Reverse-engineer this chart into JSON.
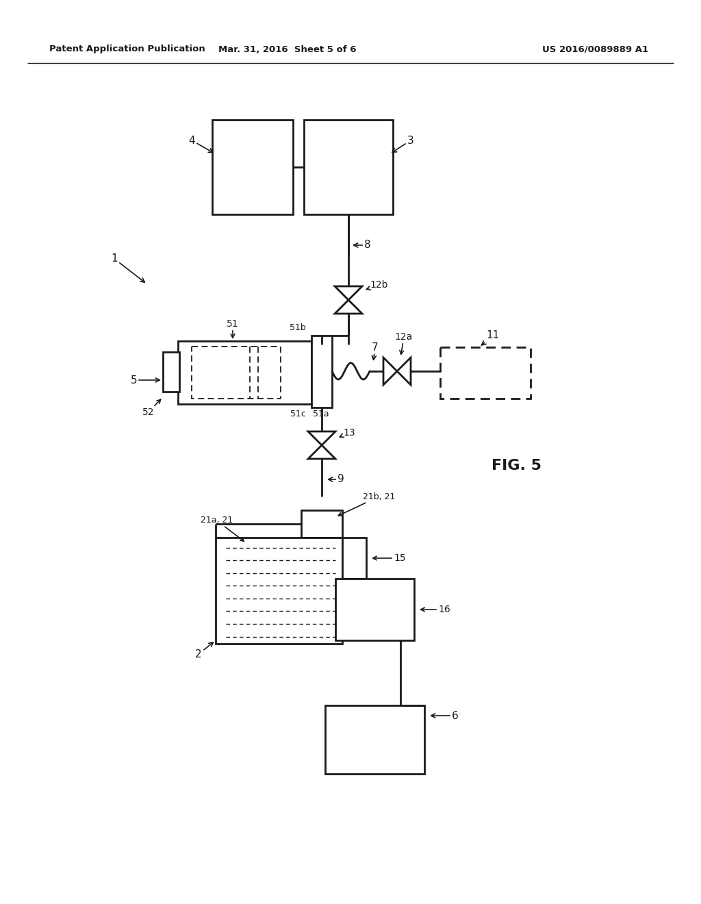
{
  "bg_color": "#ffffff",
  "lc": "#1a1a1a",
  "header_left": "Patent Application Publication",
  "header_mid": "Mar. 31, 2016  Sheet 5 of 6",
  "header_right": "US 2016/0089889 A1",
  "fig_label": "FIG. 5",
  "lw": 2.0
}
